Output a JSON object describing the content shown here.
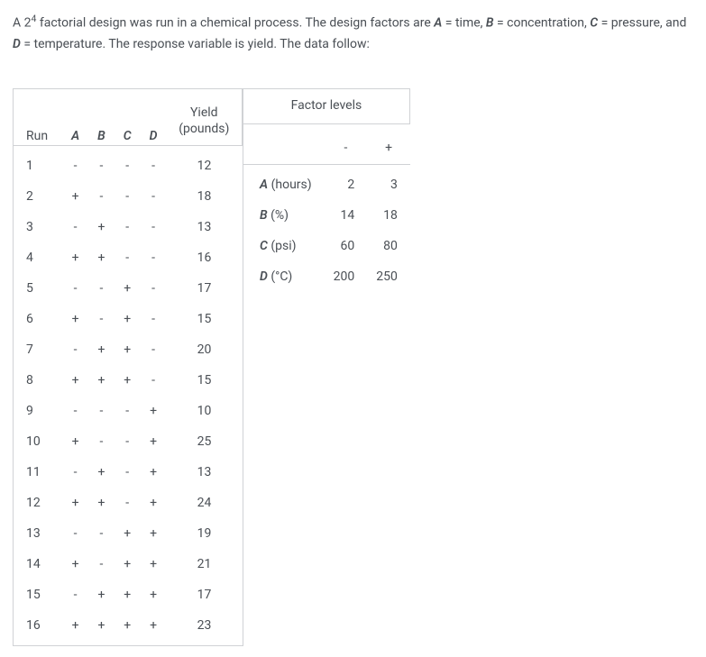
{
  "description": {
    "pre": "A 2",
    "sup": "4",
    "mid": " factorial design was run in a chemical process. The design factors are ",
    "A": "A",
    "A_eq": " = time, ",
    "B": "B",
    "B_eq": " = concentration, ",
    "C": "C",
    "C_eq": " = pressure, and ",
    "D": "D",
    "D_eq": " = temperature. The response variable is yield. The data follow:"
  },
  "headers": {
    "run": "Run",
    "A": "A",
    "B": "B",
    "C": "C",
    "D": "D",
    "yield1": "Yield",
    "yield2": "(pounds)",
    "factorLevels": "Factor levels",
    "minus": "-",
    "plus": "+"
  },
  "rows": [
    {
      "run": "1",
      "A": "-",
      "B": "-",
      "C": "-",
      "D": "-",
      "y": "12"
    },
    {
      "run": "2",
      "A": "+",
      "B": "-",
      "C": "-",
      "D": "-",
      "y": "18"
    },
    {
      "run": "3",
      "A": "-",
      "B": "+",
      "C": "-",
      "D": "-",
      "y": "13"
    },
    {
      "run": "4",
      "A": "+",
      "B": "+",
      "C": "-",
      "D": "-",
      "y": "16"
    },
    {
      "run": "5",
      "A": "-",
      "B": "-",
      "C": "+",
      "D": "-",
      "y": "17"
    },
    {
      "run": "6",
      "A": "+",
      "B": "-",
      "C": "+",
      "D": "-",
      "y": "15"
    },
    {
      "run": "7",
      "A": "-",
      "B": "+",
      "C": "+",
      "D": "-",
      "y": "20"
    },
    {
      "run": "8",
      "A": "+",
      "B": "+",
      "C": "+",
      "D": "-",
      "y": "15"
    },
    {
      "run": "9",
      "A": "-",
      "B": "-",
      "C": "-",
      "D": "+",
      "y": "10"
    },
    {
      "run": "10",
      "A": "+",
      "B": "-",
      "C": "-",
      "D": "+",
      "y": "25"
    },
    {
      "run": "11",
      "A": "-",
      "B": "+",
      "C": "-",
      "D": "+",
      "y": "13"
    },
    {
      "run": "12",
      "A": "+",
      "B": "+",
      "C": "-",
      "D": "+",
      "y": "24"
    },
    {
      "run": "13",
      "A": "-",
      "B": "-",
      "C": "+",
      "D": "+",
      "y": "19"
    },
    {
      "run": "14",
      "A": "+",
      "B": "-",
      "C": "+",
      "D": "+",
      "y": "21"
    },
    {
      "run": "15",
      "A": "-",
      "B": "+",
      "C": "+",
      "D": "+",
      "y": "17"
    },
    {
      "run": "16",
      "A": "+",
      "B": "+",
      "C": "+",
      "D": "+",
      "y": "23"
    }
  ],
  "levels": [
    {
      "sym": "A",
      "unit": " (hours)",
      "lo": "2",
      "hi": "3"
    },
    {
      "sym": "B",
      "unit": " (%)",
      "lo": "14",
      "hi": "18"
    },
    {
      "sym": "C",
      "unit": " (psi)",
      "lo": "60",
      "hi": "80"
    },
    {
      "sym": "D",
      "unit": " (°C)",
      "lo": "200",
      "hi": "250"
    }
  ],
  "style": {
    "text_color": "#4a4f55",
    "border_color": "#d0d2d5",
    "background": "#ffffff",
    "fontsize": 14
  }
}
